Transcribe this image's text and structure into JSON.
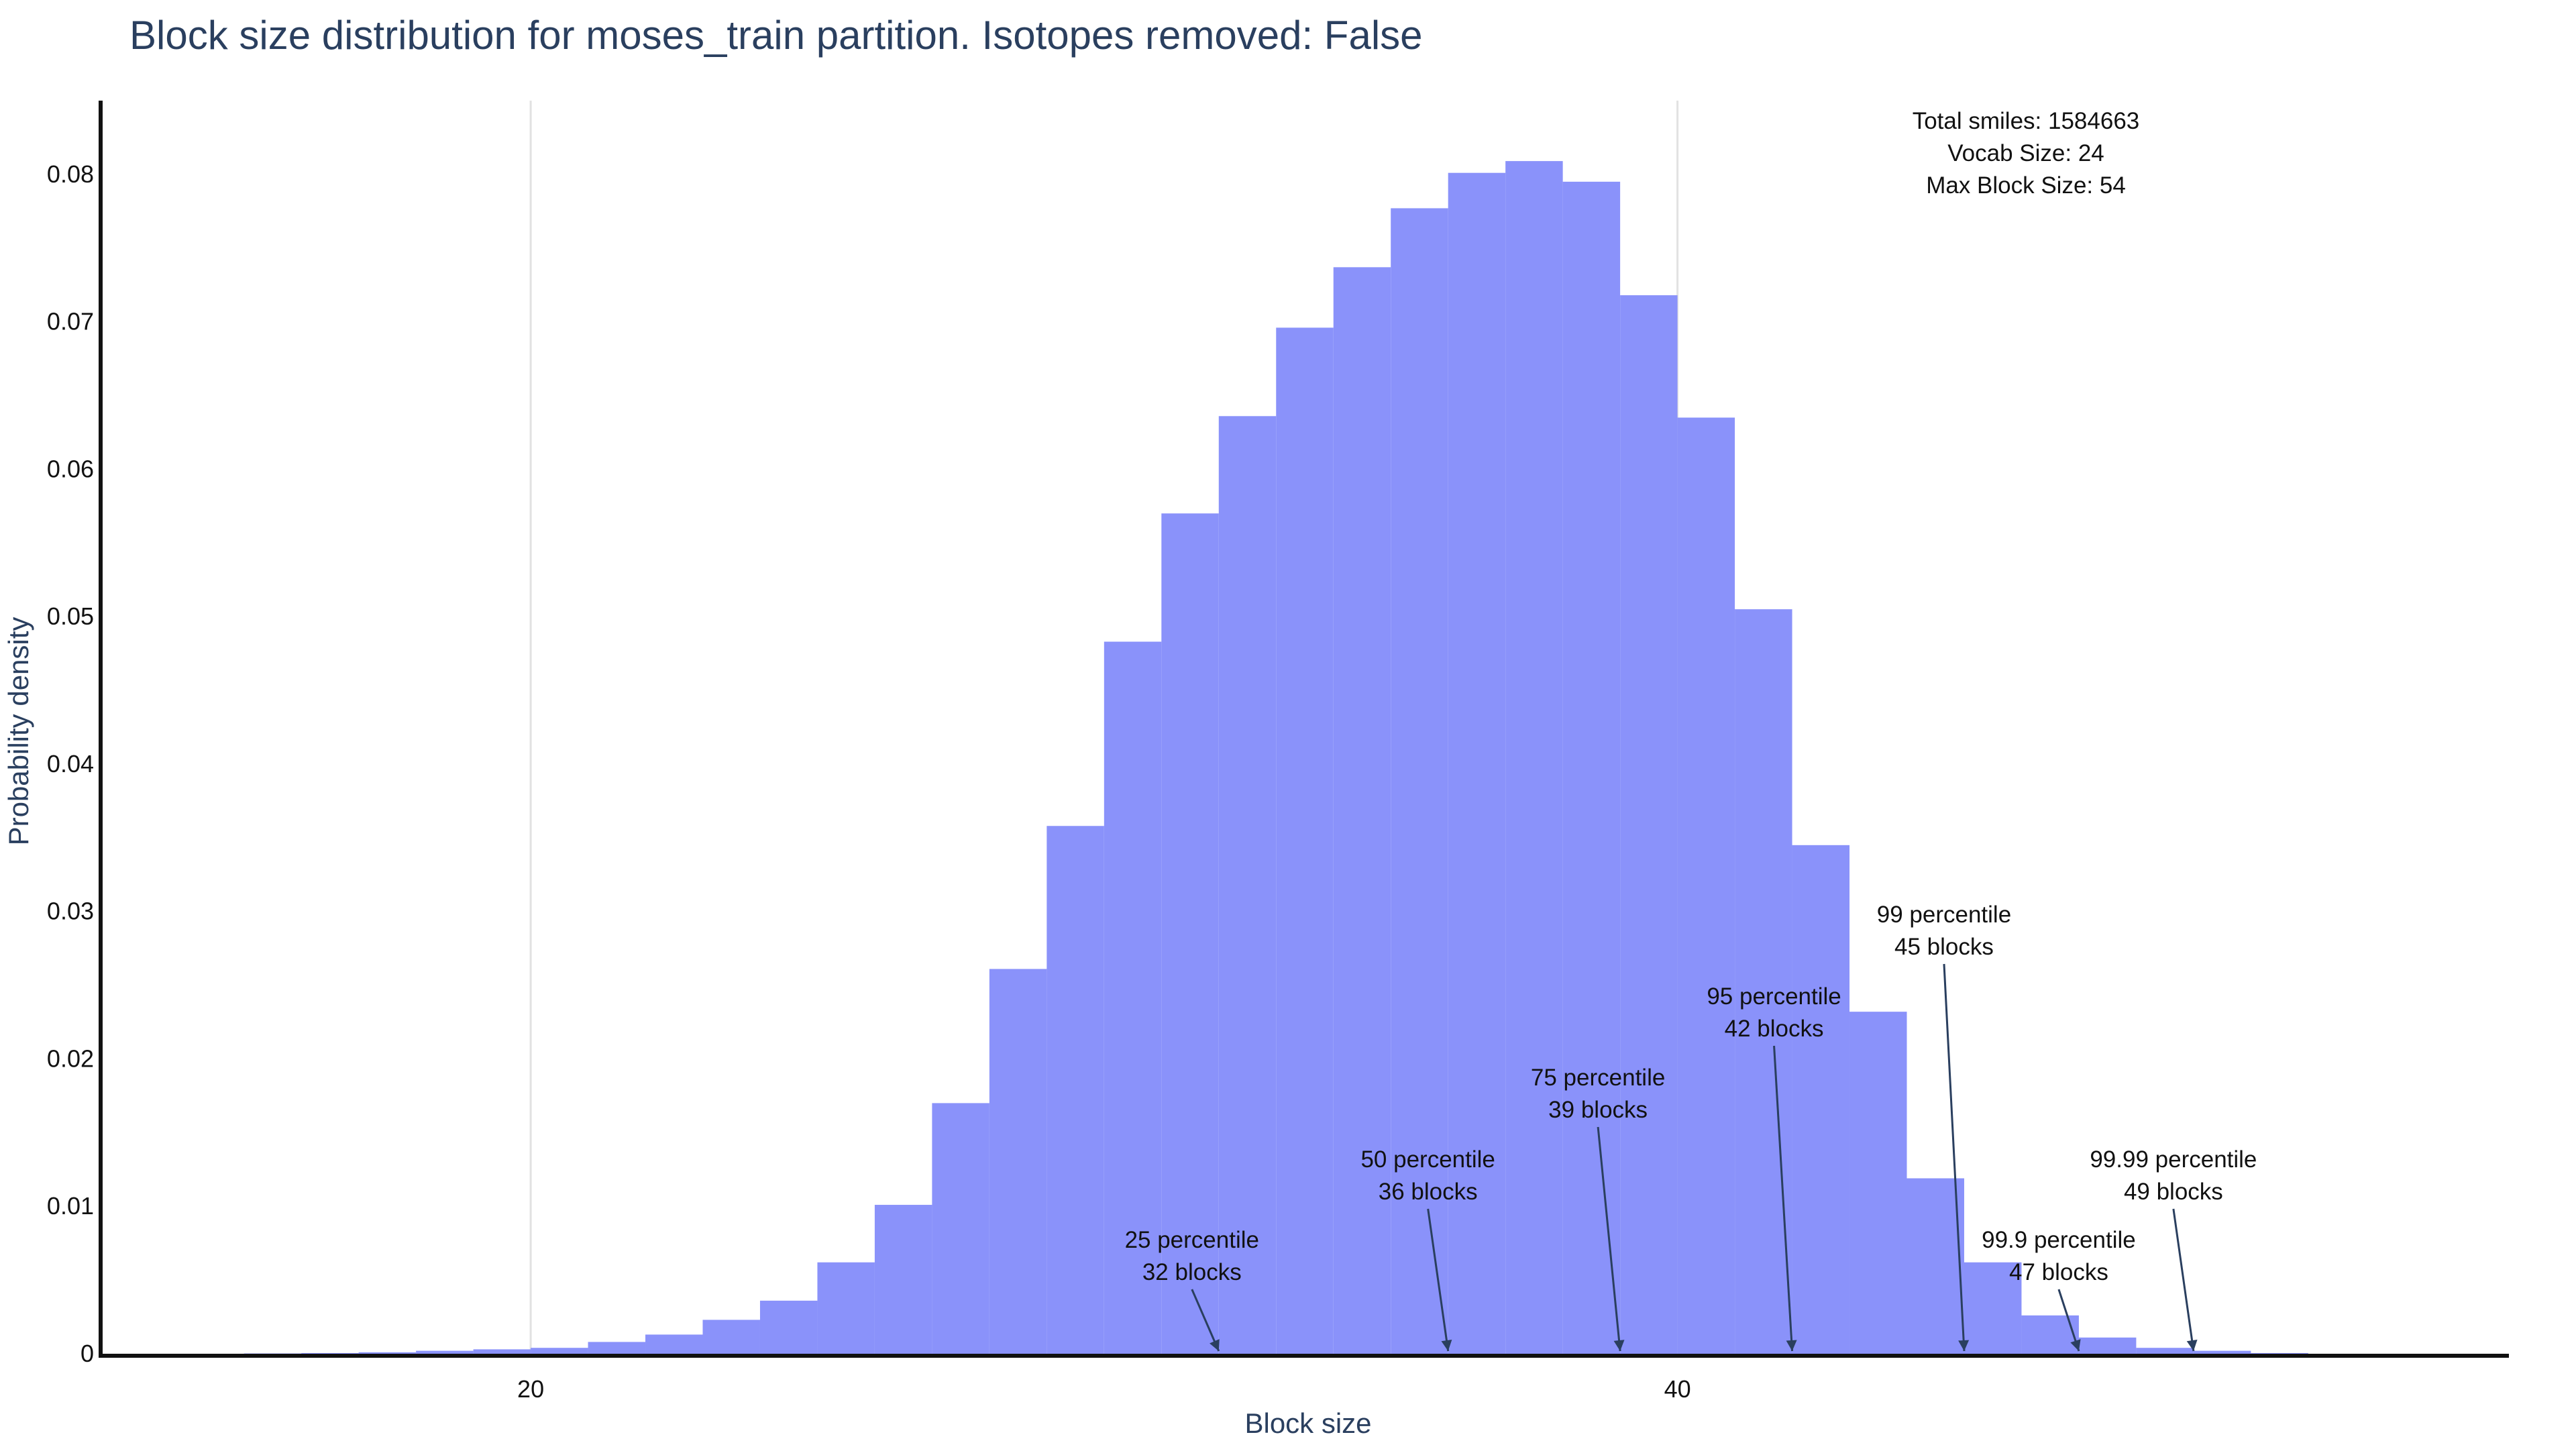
{
  "chart_data": {
    "type": "bar",
    "title": "Block size distribution for moses_train partition. Isotopes removed: False",
    "xlabel": "Block size",
    "ylabel": "Probability density",
    "xlim": [
      12.5,
      54.5
    ],
    "ylim": [
      0,
      0.085
    ],
    "x_ticks": [
      20,
      40
    ],
    "y_ticks": [
      0,
      0.01,
      0.02,
      0.03,
      0.04,
      0.05,
      0.06,
      0.07,
      0.08
    ],
    "y_tick_labels": [
      "0",
      "0.01",
      "0.02",
      "0.03",
      "0.04",
      "0.05",
      "0.06",
      "0.07",
      "0.08"
    ],
    "bin_width": 1,
    "bin_starts": [
      15,
      16,
      17,
      18,
      19,
      20,
      21,
      22,
      23,
      24,
      25,
      26,
      27,
      28,
      29,
      30,
      31,
      32,
      33,
      34,
      35,
      36,
      37,
      38,
      39,
      40,
      41,
      42,
      43,
      44,
      45,
      46,
      47,
      48,
      49,
      50
    ],
    "values": [
      2e-05,
      5e-05,
      0.0001,
      0.0002,
      0.0003,
      0.0004,
      0.0008,
      0.0013,
      0.0023,
      0.0036,
      0.0062,
      0.0101,
      0.017,
      0.0261,
      0.0358,
      0.0483,
      0.057,
      0.0636,
      0.0696,
      0.0737,
      0.0777,
      0.0801,
      0.0809,
      0.0795,
      0.0718,
      0.0635,
      0.0505,
      0.0345,
      0.0232,
      0.0119,
      0.0062,
      0.0026,
      0.0011,
      0.0004,
      0.0002,
      5e-05
    ],
    "bar_color": "#8a92fa",
    "grid": "vertical at x ticks",
    "legend": "none",
    "annotations": [
      {
        "x": 32,
        "line1": "25 percentile",
        "line2": "32 blocks"
      },
      {
        "x": 36,
        "line1": "50 percentile",
        "line2": "36 blocks"
      },
      {
        "x": 39,
        "line1": "75 percentile",
        "line2": "39 blocks"
      },
      {
        "x": 42,
        "line1": "95 percentile",
        "line2": "42 blocks"
      },
      {
        "x": 45,
        "line1": "99 percentile",
        "line2": "45 blocks"
      },
      {
        "x": 47,
        "line1": "99.9 percentile",
        "line2": "47 blocks"
      },
      {
        "x": 49,
        "line1": "99.99 percentile",
        "line2": "49 blocks"
      }
    ],
    "stats": {
      "total_smiles": "Total smiles: 1584663",
      "vocab_size": "Vocab Size: 24",
      "max_block_size": "Max Block Size: 54"
    }
  }
}
